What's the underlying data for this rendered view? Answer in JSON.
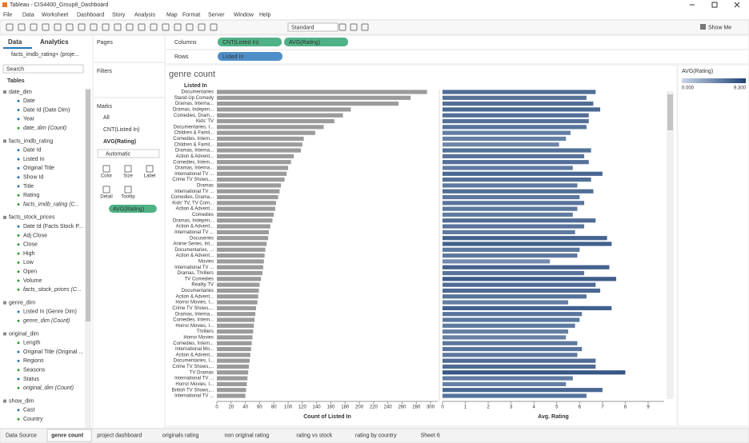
{
  "window_title": "Tableau - CIS4400_Group8_Dashboard",
  "menu": [
    "File",
    "Data",
    "Worksheet",
    "Dashboard",
    "Story",
    "Analysis",
    "Map",
    "Format",
    "Server",
    "Window",
    "Help"
  ],
  "toolbar": {
    "fit": "Standard",
    "show_me": "Show Me"
  },
  "data_pane": {
    "tabs": [
      "Data",
      "Analytics"
    ],
    "source": "facts_imdb_rating+ (proje...",
    "search": "Search",
    "tables_label": "Tables",
    "tables": [
      {
        "name": "date_dim",
        "fields": [
          "Date",
          "Date Id (Date Dim)",
          "Year",
          "date_dim (Count)"
        ]
      },
      {
        "name": "facts_imdb_rating",
        "fields": [
          "Date Id",
          "Listed In",
          "Original Title",
          "Show Id",
          "Title",
          "Rating",
          "facts_imdb_rating (C..."
        ]
      },
      {
        "name": "facts_stock_prices",
        "fields": [
          "Date Id (Facts Stock P...",
          "Adj Close",
          "Close",
          "High",
          "Low",
          "Open",
          "Volume",
          "facts_stock_prices (C..."
        ]
      },
      {
        "name": "genre_dim",
        "fields": [
          "Listed In (Genre Dim)",
          "genre_dim (Count)"
        ]
      },
      {
        "name": "original_dim",
        "fields": [
          "Length",
          "Original Title (Original ...",
          "Regions",
          "Seasons",
          "Status",
          "original_dim (Count)"
        ]
      },
      {
        "name": "show_dim",
        "fields": [
          "Cast",
          "Country"
        ]
      }
    ]
  },
  "shelves": {
    "pages": "Pages",
    "filters": "Filters",
    "columns": "Columns",
    "rows": "Rows",
    "column_pills": [
      "CNT(Listed In)",
      "AVG(Rating)"
    ],
    "row_pills": [
      "Listed In"
    ]
  },
  "marks": {
    "title": "Marks",
    "cards": [
      "All",
      "CNT(Listed In)",
      "AVG(Rating)"
    ],
    "mark_type": "Automatic",
    "buttons": [
      "Color",
      "Size",
      "Label",
      "Detail",
      "Tooltip"
    ],
    "color_pill": "AVG(Rating)"
  },
  "legend": {
    "title": "AVG(Rating)",
    "min": {
      "value": 0,
      "label": "0.000"
    },
    "max": {
      "value": 9.3,
      "label": "9.300"
    }
  },
  "sheet_tabs": [
    "Data Source",
    "genre count",
    "project dashboard",
    "originals rating",
    "non original rating",
    "rating vs stock",
    "rating by country",
    "Sheet 6"
  ],
  "active_tab": 1,
  "chart_data": {
    "type": "bar",
    "orientation": "horizontal",
    "title": "genre count",
    "category_header": "Listed In",
    "categories": [
      "Documentaries",
      "Stand-Up Comedy",
      "Dramas, Interna...",
      "Dramas, Indepen...",
      "Comedies, Dram...",
      "Kids' TV",
      "Documentaries, I...",
      "Children & Famil...",
      "Comedies, Intern...",
      "Children & Famil...",
      "Dramas, Interna...",
      "Action & Advent...",
      "Comedies, Intern...",
      "Dramas, Interna...",
      "International TV ...",
      "Crime TV Shows,...",
      "Dramas",
      "International TV ...",
      "Comedies, Drama...",
      "Kids' TV, TV Com...",
      "Action & Advent...",
      "Comedies",
      "Dramas, Indepen...",
      "Action & Advent...",
      "International TV ...",
      "Docuseries",
      "Anime Series, Int...",
      "Documentaries, ...",
      "Action & Advent...",
      "Movies",
      "International TV ...",
      "Dramas, Thrillers",
      "TV Comedies",
      "Reality TV",
      "Documentaries",
      "Action & Advent...",
      "Horror Movies, I...",
      "Crime TV Shows,...",
      "Dramas, Interna...",
      "Comedies, Intern...",
      "Horror Movies, I...",
      "Thrillers",
      "Horror Movies",
      "Comedies, Intern...",
      "International Mo...",
      "Action & Advent...",
      "Documentaries, I...",
      "Crime TV Shows,...",
      "TV Dramas",
      "International TV ...",
      "Horror Movies, I...",
      "British TV Shows,...",
      "International TV ..."
    ],
    "panels": [
      {
        "axis_label": "Count of Listed In",
        "color": "#9b9b9b",
        "xlim": [
          0,
          310
        ],
        "xticks": [
          0,
          20,
          40,
          60,
          80,
          100,
          120,
          140,
          160,
          180,
          200,
          220,
          240,
          260,
          280,
          300
        ],
        "values": [
          295,
          272,
          255,
          188,
          177,
          165,
          150,
          138,
          122,
          120,
          118,
          108,
          104,
          100,
          98,
          95,
          90,
          88,
          86,
          83,
          82,
          80,
          78,
          75,
          73,
          72,
          70,
          68,
          67,
          66,
          65,
          64,
          62,
          60,
          59,
          58,
          57,
          55,
          54,
          53,
          52,
          51,
          50,
          49,
          48,
          47,
          46,
          45,
          44,
          43,
          42,
          41,
          40
        ]
      },
      {
        "axis_label": "Avg. Rating",
        "color_range": [
          "#c9d6e8",
          "#1f4275"
        ],
        "xlim": [
          0,
          9.7
        ],
        "xticks": [
          0,
          1,
          2,
          3,
          4,
          5,
          6,
          7,
          8,
          9
        ],
        "values": [
          6.7,
          6.3,
          6.6,
          6.9,
          6.4,
          6.4,
          6.3,
          5.6,
          5.4,
          5.1,
          6.5,
          6.2,
          6.4,
          5.7,
          7.0,
          6.5,
          5.9,
          6.6,
          6.0,
          6.2,
          5.9,
          5.7,
          6.7,
          6.2,
          5.8,
          7.2,
          7.4,
          6.0,
          5.9,
          4.7,
          7.3,
          6.2,
          7.6,
          6.7,
          6.9,
          6.3,
          5.5,
          7.4,
          6.1,
          6.0,
          5.8,
          5.5,
          5.4,
          5.9,
          6.1,
          5.9,
          6.7,
          6.7,
          8.0,
          5.7,
          5.4,
          7.0,
          6.3
        ]
      }
    ]
  }
}
